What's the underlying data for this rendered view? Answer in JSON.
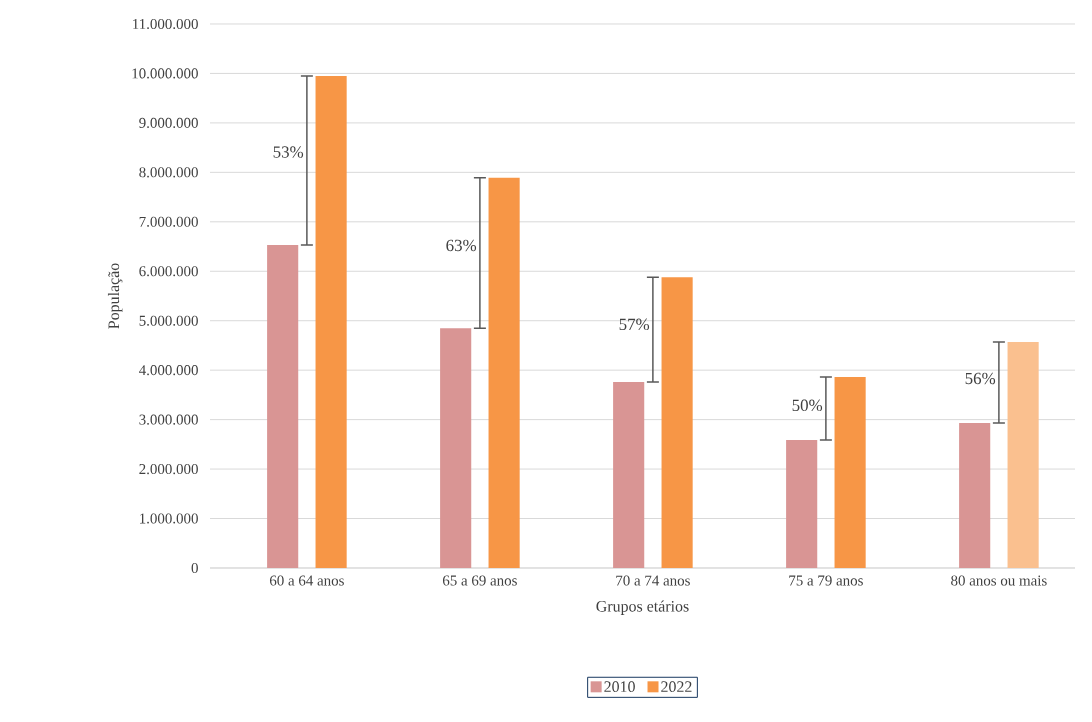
{
  "chart_data": {
    "type": "bar",
    "xlabel": "Grupos etários",
    "ylabel": "População",
    "categories": [
      "60 a 64 anos",
      "65 a 69 anos",
      "70 a 74 anos",
      "75 a 79 anos",
      "80 anos ou mais"
    ],
    "series": [
      {
        "name": "2010",
        "color": "#d99594",
        "values": [
          6530000,
          4850000,
          3760000,
          2590000,
          2930000
        ]
      },
      {
        "name": "2022",
        "color": "#f79646",
        "colors": [
          "#f79646",
          "#f79646",
          "#f79646",
          "#f79646",
          "#fac08f"
        ],
        "values": [
          9950000,
          7890000,
          5880000,
          3860000,
          4570000
        ]
      }
    ],
    "annotations": [
      "53%",
      "63%",
      "57%",
      "50%",
      "56%"
    ],
    "ylim": [
      0,
      11000000
    ],
    "yticks": [
      0,
      {
        "value": 1000000,
        "label": "1.000.000"
      },
      {
        "value": 2000000,
        "label": "2.000.000"
      },
      {
        "value": 3000000,
        "label": "3.000.000"
      },
      {
        "value": 4000000,
        "label": "4.000.000"
      },
      {
        "value": 5000000,
        "label": "5.000.000"
      },
      {
        "value": 6000000,
        "label": "6.000.000"
      },
      {
        "value": 7000000,
        "label": "7.000.000"
      },
      {
        "value": 8000000,
        "label": "8.000.000"
      },
      {
        "value": 9000000,
        "label": "9.000.000"
      },
      {
        "value": 10000000,
        "label": "10.000.000"
      },
      {
        "value": 11000000,
        "label": "11.000.000"
      }
    ],
    "grid": "y",
    "legend": "bottom"
  }
}
